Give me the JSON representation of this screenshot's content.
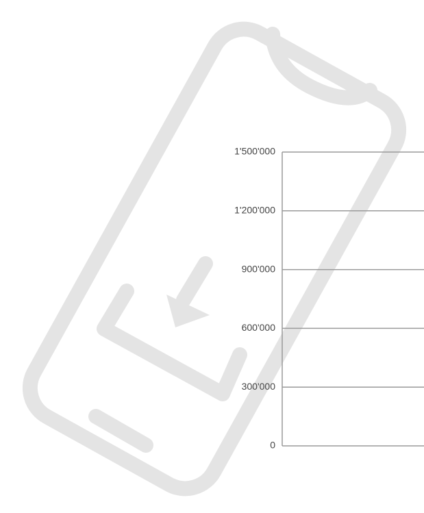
{
  "chart_data": {
    "type": "bar",
    "ylim": [
      0,
      1500000
    ],
    "yticks": [
      0,
      {
        "value": 300000,
        "label": "300'000"
      },
      {
        "value": 600000,
        "label": "600'000"
      },
      {
        "value": 900000,
        "label": "900'000"
      },
      {
        "value": 1200000,
        "label": "1'200'000"
      },
      {
        "value": 1500000,
        "label": "1'500'000"
      }
    ],
    "grid": true
  }
}
